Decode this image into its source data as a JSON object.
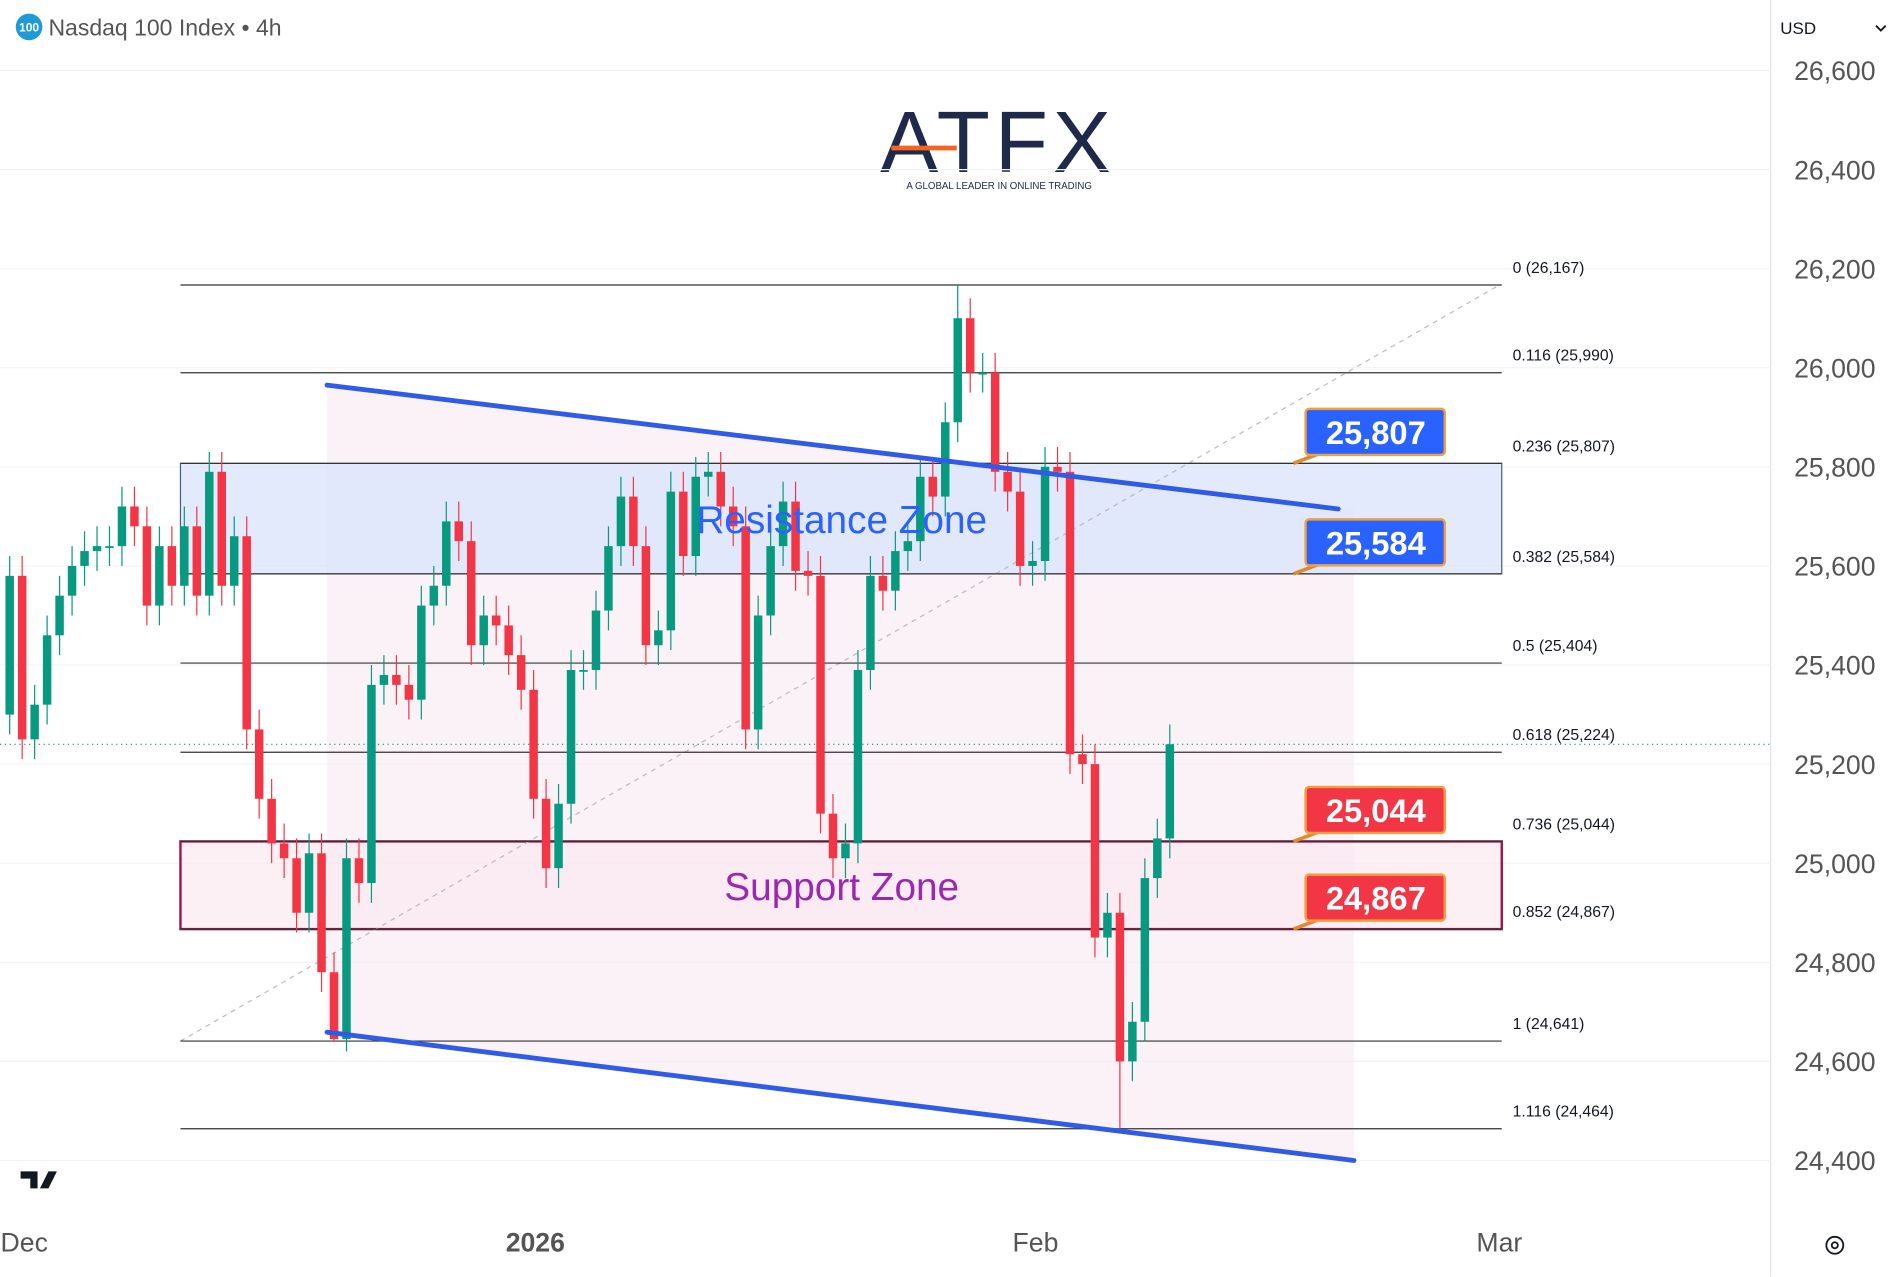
{
  "chart_data": {
    "type": "candlestick",
    "title": "Nasdaq 100 Index • 4h",
    "symbol_badge": "100",
    "currency": "USD",
    "logo": "ATFX",
    "logo_tagline": "A GLOBAL LEADER IN ONLINE TRADING",
    "ylim": [
      24400,
      26600
    ],
    "yticks": [
      {
        "value": 24400,
        "label": "24,400"
      },
      {
        "value": 24600,
        "label": "24,600"
      },
      {
        "value": 24800,
        "label": "24,800"
      },
      {
        "value": 25000,
        "label": "25,000"
      },
      {
        "value": 25200,
        "label": "25,200"
      },
      {
        "value": 25400,
        "label": "25,400"
      },
      {
        "value": 25600,
        "label": "25,600"
      },
      {
        "value": 25800,
        "label": "25,800"
      },
      {
        "value": 26000,
        "label": "26,000"
      },
      {
        "value": 26200,
        "label": "26,200"
      },
      {
        "value": 26400,
        "label": "26,400"
      },
      {
        "value": 26600,
        "label": "26,600"
      }
    ],
    "xticks": [
      "Dec",
      "2026",
      "Feb",
      "Mar"
    ],
    "up_color": "#089981",
    "down_color": "#f23645",
    "open": [
      25300,
      25580,
      25250,
      25320,
      25460,
      25540,
      25600,
      25630,
      25640,
      25640,
      25720,
      25680,
      25520,
      25640,
      25560,
      25680,
      25540,
      25790,
      25560,
      25660,
      25270,
      25130,
      25040,
      25010,
      24900,
      25020,
      24780,
      24645,
      25010,
      24960,
      25360,
      25380,
      25360,
      25330,
      25520,
      25560,
      25690,
      25650,
      25440,
      25500,
      25480,
      25420,
      25350,
      25130,
      24990,
      25120,
      25390,
      25390,
      25510,
      25640,
      25740,
      25640,
      25440,
      25470,
      25750,
      25620,
      25780,
      25790,
      25720,
      25680,
      25270,
      25500,
      25640,
      25730,
      25590,
      25580,
      25100,
      25010,
      25040,
      25390,
      25580,
      25550,
      25630,
      25650,
      25780,
      25740,
      25890,
      26100,
      25990,
      25990,
      25790,
      25750,
      25600,
      25610,
      25800,
      25790,
      25220,
      25200,
      24850,
      24900,
      24600,
      24680,
      24970,
      25050
    ],
    "high": [
      25620,
      25620,
      25360,
      25500,
      25580,
      25640,
      25670,
      25680,
      25680,
      25760,
      25760,
      25720,
      25680,
      25680,
      25720,
      25720,
      25830,
      25830,
      25700,
      25700,
      25310,
      25170,
      25080,
      25050,
      25060,
      25060,
      24820,
      25050,
      25050,
      25400,
      25420,
      25420,
      25400,
      25560,
      25600,
      25730,
      25730,
      25690,
      25540,
      25540,
      25520,
      25460,
      25390,
      25170,
      25160,
      25430,
      25430,
      25550,
      25680,
      25780,
      25780,
      25680,
      25510,
      25790,
      25790,
      25820,
      25830,
      25830,
      25760,
      25720,
      25540,
      25680,
      25770,
      25770,
      25630,
      25620,
      25140,
      25080,
      25430,
      25620,
      25620,
      25670,
      25690,
      25820,
      25820,
      25930,
      26167,
      26140,
      26030,
      26030,
      25830,
      25790,
      25650,
      25840,
      25840,
      25830,
      25260,
      25240,
      24940,
      24940,
      24720,
      25010,
      25090,
      25280
    ],
    "low": [
      25260,
      25210,
      25210,
      25280,
      25420,
      25500,
      25560,
      25590,
      25600,
      25600,
      25640,
      25480,
      25480,
      25520,
      25520,
      25500,
      25500,
      25520,
      25520,
      25230,
      25090,
      25000,
      24970,
      24860,
      24860,
      24740,
      24641,
      24620,
      24920,
      24920,
      25320,
      25320,
      25290,
      25290,
      25480,
      25520,
      25610,
      25400,
      25400,
      25440,
      25380,
      25310,
      25090,
      24950,
      24950,
      25080,
      25350,
      25350,
      25470,
      25600,
      25600,
      25400,
      25400,
      25430,
      25580,
      25580,
      25740,
      25680,
      25640,
      25230,
      25230,
      25460,
      25600,
      25550,
      25540,
      25060,
      24970,
      24970,
      25000,
      25350,
      25510,
      25510,
      25590,
      25610,
      25700,
      25700,
      25850,
      25950,
      25950,
      25750,
      25710,
      25560,
      25560,
      25570,
      25750,
      25180,
      25160,
      24810,
      24810,
      24464,
      24560,
      24640,
      24930,
      25010
    ],
    "close": [
      25580,
      25250,
      25320,
      25460,
      25540,
      25600,
      25630,
      25640,
      25640,
      25720,
      25680,
      25520,
      25640,
      25560,
      25680,
      25540,
      25790,
      25560,
      25660,
      25270,
      25130,
      25040,
      25010,
      24900,
      25020,
      24780,
      24645,
      25010,
      24960,
      25360,
      25380,
      25360,
      25330,
      25520,
      25560,
      25690,
      25650,
      25440,
      25500,
      25480,
      25420,
      25350,
      25130,
      24990,
      25120,
      25390,
      25390,
      25510,
      25640,
      25740,
      25640,
      25440,
      25470,
      25750,
      25620,
      25780,
      25790,
      25720,
      25680,
      25270,
      25500,
      25640,
      25730,
      25590,
      25580,
      25100,
      25010,
      25040,
      25390,
      25580,
      25550,
      25630,
      25650,
      25780,
      25740,
      25890,
      26100,
      25990,
      25990,
      25790,
      25750,
      25600,
      25610,
      25800,
      25790,
      25220,
      25200,
      24850,
      24900,
      24600,
      24680,
      24970,
      25050,
      25240
    ],
    "fib_levels": [
      {
        "label": "0 (26,167)",
        "value": 26167
      },
      {
        "label": "0.116 (25,990)",
        "value": 25990
      },
      {
        "label": "0.236 (25,807)",
        "value": 25807
      },
      {
        "label": "0.382 (25,584)",
        "value": 25584
      },
      {
        "label": "0.5 (25,404)",
        "value": 25404
      },
      {
        "label": "0.618 (25,224)",
        "value": 25224
      },
      {
        "label": "0.736 (25,044)",
        "value": 25044
      },
      {
        "label": "0.852 (24,867)",
        "value": 24867
      },
      {
        "label": "1 (24,641)",
        "value": 24641
      },
      {
        "label": "1.116 (24,464)",
        "value": 24464
      }
    ],
    "zones": [
      {
        "name": "Resistance Zone",
        "low": 25584,
        "high": 25807,
        "color": "#2962ff"
      },
      {
        "name": "Support Zone",
        "low": 24867,
        "high": 25044,
        "color": "#9c27b0"
      }
    ],
    "price_tags": {
      "values": [
        25807,
        25584,
        25044,
        24867
      ],
      "value_labels": [
        "25,807",
        "25,584",
        "25,044",
        "24,867"
      ],
      "colors": [
        "#2962ff",
        "#2962ff",
        "#f23645",
        "#f23645"
      ]
    },
    "channel": {
      "upper": [
        25965,
        25715
      ],
      "lower": [
        24659,
        24400
      ],
      "color": "#2f5be6"
    }
  }
}
